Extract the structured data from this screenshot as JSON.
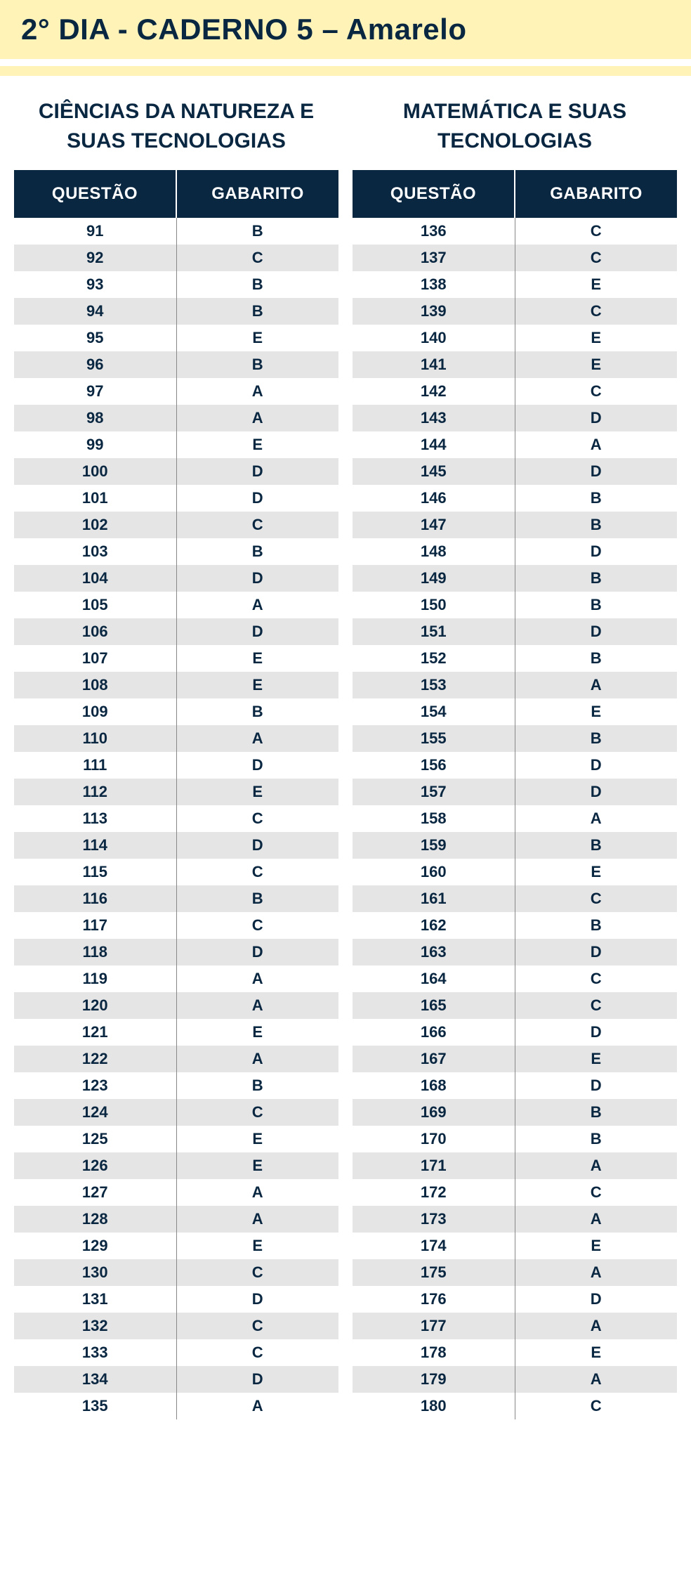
{
  "header": {
    "title": "2° DIA - CADERNO 5 – Amarelo"
  },
  "colors": {
    "banner_bg": "#fff3b8",
    "header_text": "#0a2742",
    "table_header_bg": "#0a2742",
    "table_header_text": "#ffffff",
    "row_even_bg": "#e5e5e5",
    "row_odd_bg": "#ffffff",
    "cell_text": "#0a2742"
  },
  "sections": [
    {
      "title": "CIÊNCIAS DA NATUREZA E SUAS TECNOLOGIAS",
      "columns": [
        "QUESTÃO",
        "GABARITO"
      ],
      "rows": [
        [
          "91",
          "B"
        ],
        [
          "92",
          "C"
        ],
        [
          "93",
          "B"
        ],
        [
          "94",
          "B"
        ],
        [
          "95",
          "E"
        ],
        [
          "96",
          "B"
        ],
        [
          "97",
          "A"
        ],
        [
          "98",
          "A"
        ],
        [
          "99",
          "E"
        ],
        [
          "100",
          "D"
        ],
        [
          "101",
          "D"
        ],
        [
          "102",
          "C"
        ],
        [
          "103",
          "B"
        ],
        [
          "104",
          "D"
        ],
        [
          "105",
          "A"
        ],
        [
          "106",
          "D"
        ],
        [
          "107",
          "E"
        ],
        [
          "108",
          "E"
        ],
        [
          "109",
          "B"
        ],
        [
          "110",
          "A"
        ],
        [
          "111",
          "D"
        ],
        [
          "112",
          "E"
        ],
        [
          "113",
          "C"
        ],
        [
          "114",
          "D"
        ],
        [
          "115",
          "C"
        ],
        [
          "116",
          "B"
        ],
        [
          "117",
          "C"
        ],
        [
          "118",
          "D"
        ],
        [
          "119",
          "A"
        ],
        [
          "120",
          "A"
        ],
        [
          "121",
          "E"
        ],
        [
          "122",
          "A"
        ],
        [
          "123",
          "B"
        ],
        [
          "124",
          "C"
        ],
        [
          "125",
          "E"
        ],
        [
          "126",
          "E"
        ],
        [
          "127",
          "A"
        ],
        [
          "128",
          "A"
        ],
        [
          "129",
          "E"
        ],
        [
          "130",
          "C"
        ],
        [
          "131",
          "D"
        ],
        [
          "132",
          "C"
        ],
        [
          "133",
          "C"
        ],
        [
          "134",
          "D"
        ],
        [
          "135",
          "A"
        ]
      ]
    },
    {
      "title": "MATEMÁTICA E SUAS TECNOLOGIAS",
      "columns": [
        "QUESTÃO",
        "GABARITO"
      ],
      "rows": [
        [
          "136",
          "C"
        ],
        [
          "137",
          "C"
        ],
        [
          "138",
          "E"
        ],
        [
          "139",
          "C"
        ],
        [
          "140",
          "E"
        ],
        [
          "141",
          "E"
        ],
        [
          "142",
          "C"
        ],
        [
          "143",
          "D"
        ],
        [
          "144",
          "A"
        ],
        [
          "145",
          "D"
        ],
        [
          "146",
          "B"
        ],
        [
          "147",
          "B"
        ],
        [
          "148",
          "D"
        ],
        [
          "149",
          "B"
        ],
        [
          "150",
          "B"
        ],
        [
          "151",
          "D"
        ],
        [
          "152",
          "B"
        ],
        [
          "153",
          "A"
        ],
        [
          "154",
          "E"
        ],
        [
          "155",
          "B"
        ],
        [
          "156",
          "D"
        ],
        [
          "157",
          "D"
        ],
        [
          "158",
          "A"
        ],
        [
          "159",
          "B"
        ],
        [
          "160",
          "E"
        ],
        [
          "161",
          "C"
        ],
        [
          "162",
          "B"
        ],
        [
          "163",
          "D"
        ],
        [
          "164",
          "C"
        ],
        [
          "165",
          "C"
        ],
        [
          "166",
          "D"
        ],
        [
          "167",
          "E"
        ],
        [
          "168",
          "D"
        ],
        [
          "169",
          "B"
        ],
        [
          "170",
          "B"
        ],
        [
          "171",
          "A"
        ],
        [
          "172",
          "C"
        ],
        [
          "173",
          "A"
        ],
        [
          "174",
          "E"
        ],
        [
          "175",
          "A"
        ],
        [
          "176",
          "D"
        ],
        [
          "177",
          "A"
        ],
        [
          "178",
          "E"
        ],
        [
          "179",
          "A"
        ],
        [
          "180",
          "C"
        ]
      ]
    }
  ]
}
